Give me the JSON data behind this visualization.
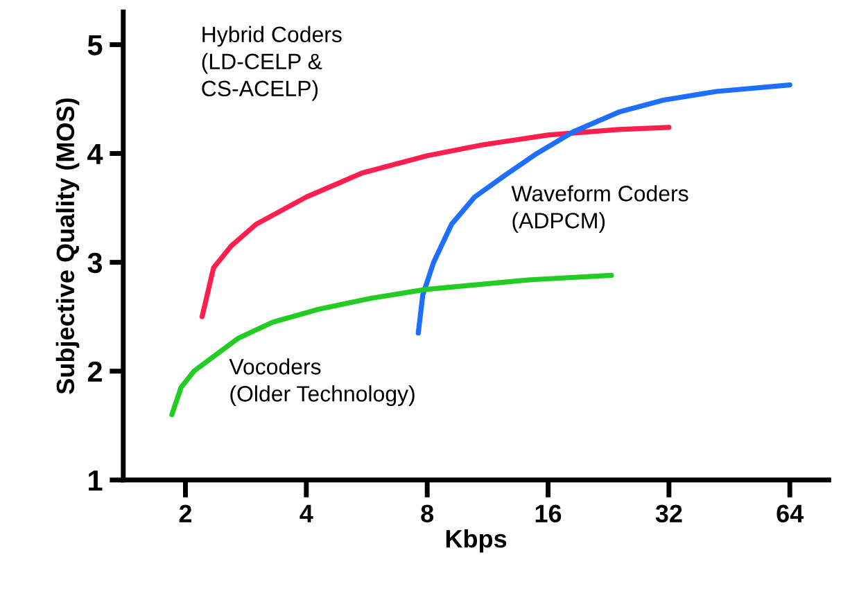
{
  "chart_data": {
    "type": "line",
    "xlabel": "Kbps",
    "ylabel": "Subjective Quality (MOS)",
    "log": "x",
    "xlim": [
      1.4,
      80
    ],
    "xticks": [
      2,
      4,
      8,
      16,
      32,
      64
    ],
    "ylim": [
      1,
      5.3
    ],
    "yticks": [
      1,
      2,
      3,
      4,
      5
    ],
    "grid": false,
    "legend": false,
    "marker": "none",
    "line_style": "solid",
    "annotations": [
      "Hybrid Coders\n(LD-CELP &\nCS-ACELP)",
      "Waveform Coders\n(ADPCM)",
      "Vocoders\n(Older Technology)"
    ],
    "series": [
      {
        "color": "#ff1f4f",
        "x": [
          2.2,
          2.35,
          2.6,
          3.0,
          4.0,
          5.5,
          8,
          11,
          16,
          24,
          32
        ],
        "values": [
          2.5,
          2.95,
          3.15,
          3.35,
          3.6,
          3.82,
          3.98,
          4.08,
          4.17,
          4.22,
          4.24
        ]
      },
      {
        "color": "#1f6fff",
        "x": [
          7.6,
          7.8,
          8.3,
          9.2,
          10.5,
          12.5,
          15,
          18.5,
          24,
          31,
          42,
          64
        ],
        "values": [
          2.35,
          2.7,
          3.0,
          3.35,
          3.6,
          3.8,
          4.0,
          4.2,
          4.38,
          4.49,
          4.57,
          4.63
        ]
      },
      {
        "color": "#22cc22",
        "x": [
          1.85,
          1.95,
          2.1,
          2.7,
          3.3,
          4.3,
          5.8,
          7.9,
          11,
          14.5,
          23
        ],
        "values": [
          1.6,
          1.85,
          2.0,
          2.3,
          2.45,
          2.57,
          2.67,
          2.75,
          2.8,
          2.84,
          2.88
        ]
      }
    ]
  }
}
